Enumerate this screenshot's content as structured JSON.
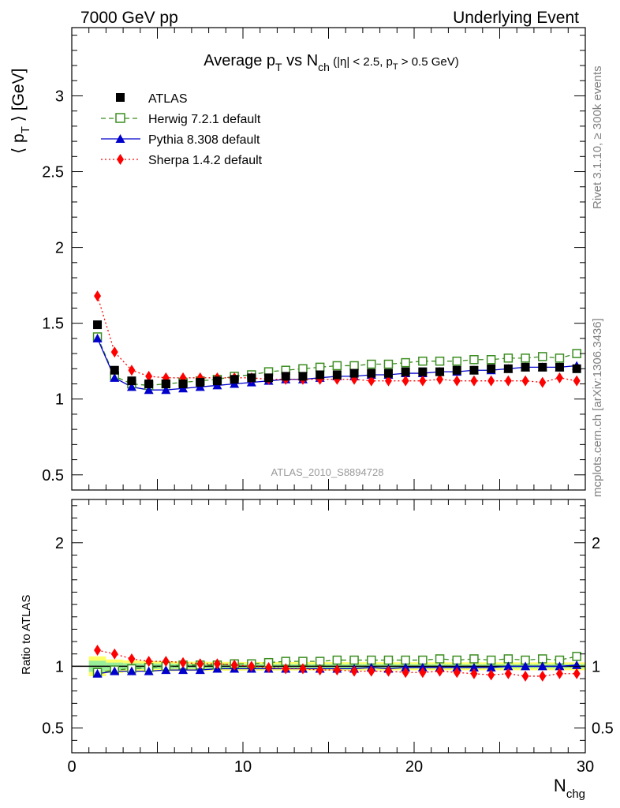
{
  "header": {
    "left": "7000 GeV pp",
    "right": "Underlying Event"
  },
  "sidebar": {
    "rivet": "Rivet 3.1.10, ≥ 300k events",
    "mcplots": "mcplots.cern.ch [arXiv:1306.3436]"
  },
  "chart_data": [
    {
      "type": "scatter",
      "title_main": "Average p",
      "title_sub1": "T",
      "title_mid": " vs N",
      "title_sub2": "ch",
      "title_cond_a": " (|η| < 2.5, p",
      "title_cond_sub": "T",
      "title_cond_b": " > 0.5 GeV)",
      "ylabel_a": "⟨ p",
      "ylabel_sub": "T",
      "ylabel_b": " ⟩ [GeV]",
      "xlim": [
        0,
        30
      ],
      "ylim": [
        0.4,
        3.45
      ],
      "y_ticks": [
        "0.5",
        "1",
        "1.5",
        "2",
        "2.5",
        "3"
      ],
      "watermark": "ATLAS_2010_S8894728",
      "x": [
        1.5,
        2.5,
        3.5,
        4.5,
        5.5,
        6.5,
        7.5,
        8.5,
        9.5,
        10.5,
        11.5,
        12.5,
        13.5,
        14.5,
        15.5,
        16.5,
        17.5,
        18.5,
        19.5,
        20.5,
        21.5,
        22.5,
        23.5,
        24.5,
        25.5,
        26.5,
        27.5,
        28.5,
        29.5
      ],
      "series": [
        {
          "name": "ATLAS",
          "color": "#000000",
          "marker": "square-filled",
          "values": [
            1.49,
            1.19,
            1.12,
            1.1,
            1.1,
            1.1,
            1.11,
            1.12,
            1.13,
            1.14,
            1.14,
            1.15,
            1.15,
            1.16,
            1.16,
            1.17,
            1.17,
            1.17,
            1.18,
            1.18,
            1.18,
            1.19,
            1.19,
            1.2,
            1.2,
            1.21,
            1.21,
            1.21,
            1.2
          ]
        },
        {
          "name": "Herwig 7.2.1 default",
          "color": "#3a8d1f",
          "marker": "square-open",
          "dash": "6,4",
          "values": [
            1.41,
            1.15,
            1.1,
            1.09,
            1.1,
            1.11,
            1.12,
            1.13,
            1.15,
            1.16,
            1.18,
            1.19,
            1.2,
            1.21,
            1.22,
            1.22,
            1.23,
            1.23,
            1.24,
            1.25,
            1.25,
            1.25,
            1.26,
            1.26,
            1.27,
            1.27,
            1.28,
            1.27,
            1.3
          ]
        },
        {
          "name": "Pythia 8.308 default",
          "color": "#0000cc",
          "marker": "triangle-filled",
          "values": [
            1.4,
            1.14,
            1.08,
            1.06,
            1.06,
            1.07,
            1.08,
            1.09,
            1.1,
            1.11,
            1.12,
            1.13,
            1.13,
            1.14,
            1.15,
            1.15,
            1.16,
            1.16,
            1.17,
            1.17,
            1.18,
            1.18,
            1.19,
            1.19,
            1.2,
            1.21,
            1.21,
            1.21,
            1.22
          ]
        },
        {
          "name": "Sherpa 1.4.2 default",
          "color": "#ff0000",
          "marker": "diamond-filled",
          "dash": "2,3",
          "values": [
            1.68,
            1.31,
            1.19,
            1.15,
            1.14,
            1.14,
            1.14,
            1.14,
            1.14,
            1.14,
            1.13,
            1.13,
            1.13,
            1.13,
            1.13,
            1.13,
            1.12,
            1.12,
            1.12,
            1.12,
            1.13,
            1.12,
            1.12,
            1.12,
            1.12,
            1.12,
            1.11,
            1.14,
            1.12
          ]
        }
      ]
    },
    {
      "type": "scatter",
      "ylabel": "Ratio to ATLAS",
      "xlabel_a": "N",
      "xlabel_sub": "chg",
      "xlim": [
        0,
        30
      ],
      "ylim": [
        0.3,
        2.35
      ],
      "y_ticks": [
        "0.5",
        "1",
        "2"
      ],
      "x_ticks": [
        "0",
        "10",
        "20",
        "30"
      ],
      "band_colors": [
        "#ffff66",
        "#99ee99"
      ],
      "x": [
        1.5,
        2.5,
        3.5,
        4.5,
        5.5,
        6.5,
        7.5,
        8.5,
        9.5,
        10.5,
        11.5,
        12.5,
        13.5,
        14.5,
        15.5,
        16.5,
        17.5,
        18.5,
        19.5,
        20.5,
        21.5,
        22.5,
        23.5,
        24.5,
        25.5,
        26.5,
        27.5,
        28.5,
        29.5
      ],
      "series": [
        {
          "name": "Herwig 7.2.1 default",
          "color": "#3a8d1f",
          "marker": "square-open",
          "dash": "6,4",
          "values": [
            0.95,
            0.97,
            0.98,
            0.99,
            1.0,
            1.01,
            1.01,
            1.01,
            1.02,
            1.02,
            1.03,
            1.04,
            1.04,
            1.04,
            1.05,
            1.05,
            1.05,
            1.05,
            1.05,
            1.05,
            1.06,
            1.05,
            1.06,
            1.05,
            1.06,
            1.05,
            1.06,
            1.05,
            1.08
          ]
        },
        {
          "name": "Pythia 8.308 default",
          "color": "#0000cc",
          "marker": "triangle-filled",
          "values": [
            0.94,
            0.96,
            0.96,
            0.96,
            0.97,
            0.97,
            0.97,
            0.98,
            0.98,
            0.98,
            0.98,
            0.98,
            0.98,
            0.98,
            0.98,
            0.98,
            0.99,
            0.98,
            0.99,
            0.99,
            0.99,
            0.99,
            0.99,
            0.99,
            1.0,
            1.0,
            1.0,
            1.0,
            1.01
          ]
        },
        {
          "name": "Sherpa 1.4.2 default",
          "color": "#ff0000",
          "marker": "diamond-filled",
          "dash": "2,3",
          "values": [
            1.13,
            1.1,
            1.06,
            1.04,
            1.04,
            1.03,
            1.02,
            1.02,
            1.01,
            1.0,
            0.99,
            0.98,
            0.98,
            0.97,
            0.97,
            0.96,
            0.96,
            0.96,
            0.95,
            0.95,
            0.96,
            0.95,
            0.94,
            0.93,
            0.94,
            0.92,
            0.92,
            0.94,
            0.94
          ]
        }
      ]
    }
  ]
}
